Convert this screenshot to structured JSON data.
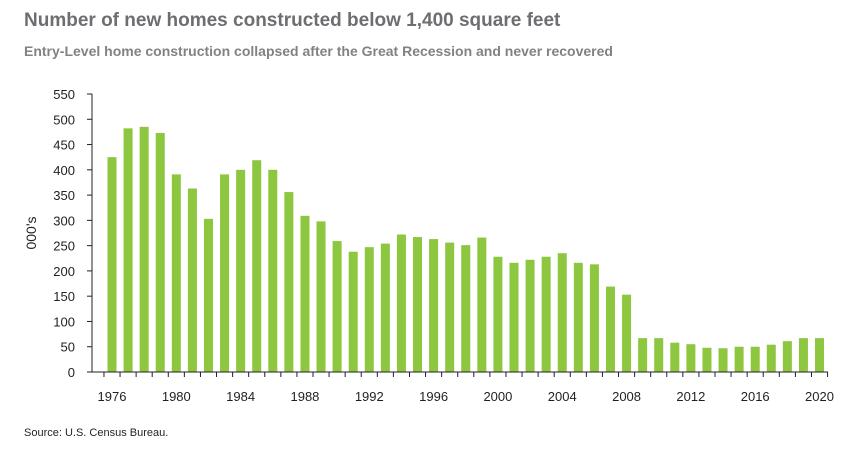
{
  "chart_data": {
    "type": "bar",
    "title": "Number of new homes constructed below 1,400 square feet",
    "subtitle": "Entry-Level home construction collapsed after the Great Recession and never recovered",
    "xlabel": "",
    "ylabel": "000's",
    "ylim": [
      0,
      550
    ],
    "yticks": [
      0,
      50,
      100,
      150,
      200,
      250,
      300,
      350,
      400,
      450,
      500,
      550
    ],
    "xtick_labels": [
      "1976",
      "1980",
      "1984",
      "1988",
      "1992",
      "1996",
      "2000",
      "2004",
      "2008",
      "2012",
      "2016",
      "2020"
    ],
    "categories": [
      1976,
      1977,
      1978,
      1979,
      1980,
      1981,
      1982,
      1983,
      1984,
      1985,
      1986,
      1987,
      1988,
      1989,
      1990,
      1991,
      1992,
      1993,
      1994,
      1995,
      1996,
      1997,
      1998,
      1999,
      2000,
      2001,
      2002,
      2003,
      2004,
      2005,
      2006,
      2007,
      2008,
      2009,
      2010,
      2011,
      2012,
      2013,
      2014,
      2015,
      2016,
      2017,
      2018,
      2019,
      2020
    ],
    "values": [
      425,
      482,
      485,
      473,
      391,
      363,
      303,
      391,
      400,
      419,
      400,
      356,
      309,
      298,
      259,
      238,
      247,
      254,
      272,
      267,
      263,
      256,
      251,
      266,
      228,
      216,
      222,
      228,
      235,
      216,
      213,
      169,
      153,
      67,
      67,
      58,
      55,
      48,
      47,
      50,
      50,
      54,
      61,
      67,
      67
    ],
    "bar_color": "#8dc63f",
    "grid": false
  },
  "source": "Source: U.S. Census Bureau."
}
